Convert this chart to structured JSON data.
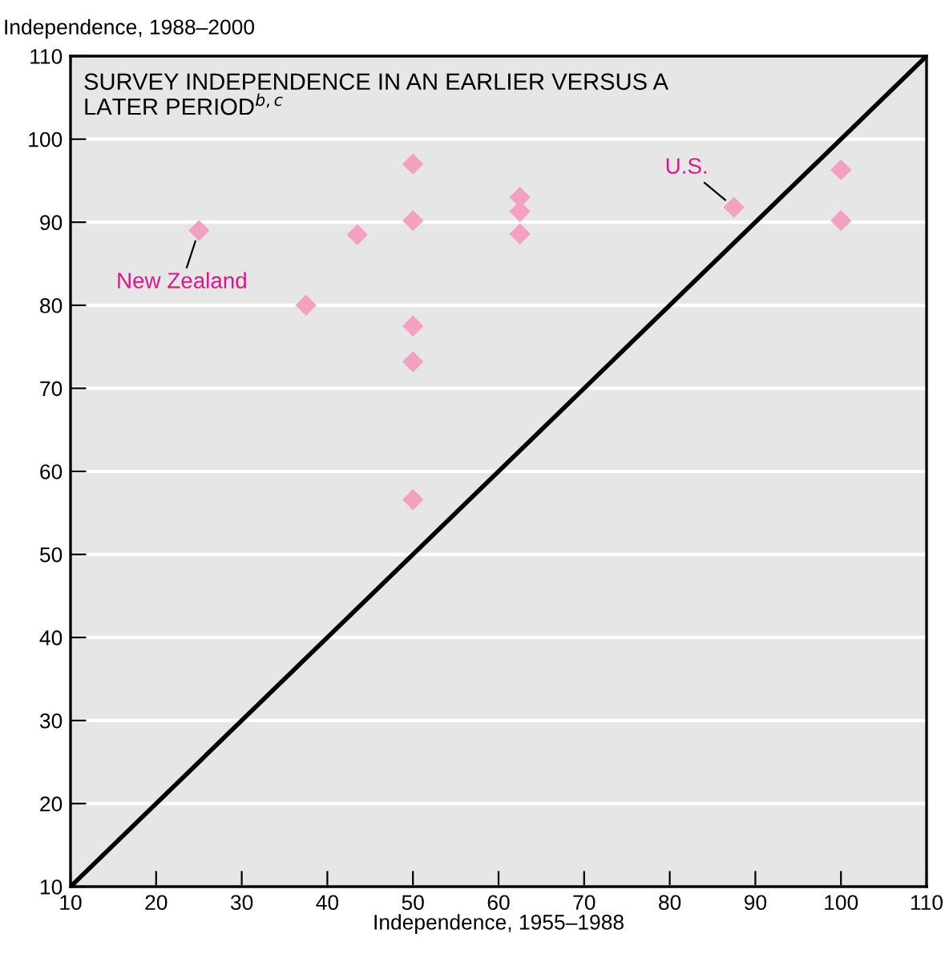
{
  "chart_data": {
    "type": "scatter",
    "title": "SURVEY INDEPENDENCE IN AN EARLIER VERSUS A LATER PERIOD$^{b,c}$",
    "xlabel": "Independence, 1955–1988",
    "ylabel": "Independence, 1988–2000",
    "series": [
      {
        "color": "#f4a0c0",
        "marker": "diamond",
        "x": [
          25,
          37.5,
          43.5,
          50,
          50,
          50,
          50,
          50,
          62.5,
          62.5,
          62.5,
          87.5,
          100,
          100
        ],
        "values": [
          89,
          80,
          88.5,
          97,
          90.2,
          77.5,
          73.2,
          56.6,
          93,
          91.3,
          88.6,
          91.8,
          96.3,
          90.2
        ]
      },
      {
        "type": "line",
        "color": "#000000",
        "marker": "none",
        "x": [
          10,
          110
        ],
        "values": [
          10,
          110
        ]
      }
    ],
    "annotations": [
      {
        "text": "New Zealand",
        "x": 25,
        "y": 89
      },
      {
        "text": "U.S.",
        "x": 87.5,
        "y": 91.8
      }
    ],
    "xlim": [
      10,
      110
    ],
    "ylim": [
      10,
      110
    ],
    "xticks": [
      10,
      20,
      30,
      40,
      50,
      60,
      70,
      80,
      90,
      100,
      110
    ],
    "yticks": [
      10,
      20,
      30,
      40,
      50,
      60,
      70,
      80,
      90,
      100,
      110
    ],
    "grid": "y",
    "legend": false
  }
}
